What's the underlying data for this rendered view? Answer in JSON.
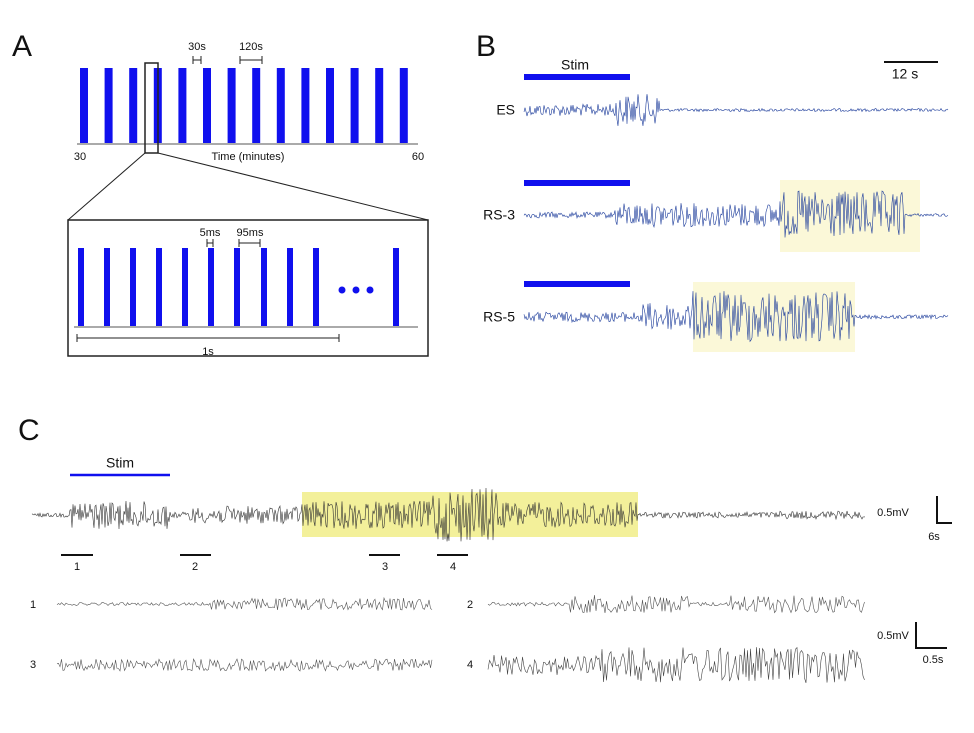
{
  "panel_a": {
    "label": "A",
    "interval_long": "30s",
    "interval_period": "120s",
    "axis_start": "30",
    "axis_end": "60",
    "axis_label": "Time (minutes)",
    "inset_pulse": "5ms",
    "inset_interval": "95ms",
    "inset_duration": "1s"
  },
  "panel_b": {
    "label": "B",
    "stim": "Stim",
    "scale": "12 s",
    "traces": [
      "ES",
      "RS-3",
      "RS-5"
    ]
  },
  "panel_c": {
    "label": "C",
    "stim": "Stim",
    "scale_voltage": "0.5mV",
    "scale_time": "6s",
    "segments": [
      "1",
      "2",
      "3",
      "4"
    ],
    "zoom_labels": [
      "1",
      "2",
      "3",
      "4"
    ],
    "zoom_scale_voltage": "0.5mV",
    "zoom_scale_time": "0.5s"
  }
}
